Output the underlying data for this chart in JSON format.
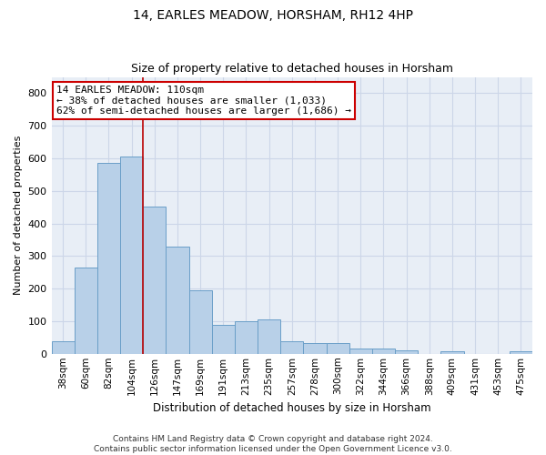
{
  "title": "14, EARLES MEADOW, HORSHAM, RH12 4HP",
  "subtitle": "Size of property relative to detached houses in Horsham",
  "xlabel": "Distribution of detached houses by size in Horsham",
  "ylabel": "Number of detached properties",
  "categories": [
    "38sqm",
    "60sqm",
    "82sqm",
    "104sqm",
    "126sqm",
    "147sqm",
    "169sqm",
    "191sqm",
    "213sqm",
    "235sqm",
    "257sqm",
    "278sqm",
    "300sqm",
    "322sqm",
    "344sqm",
    "366sqm",
    "388sqm",
    "409sqm",
    "431sqm",
    "453sqm",
    "475sqm"
  ],
  "values": [
    38,
    265,
    585,
    605,
    452,
    330,
    195,
    90,
    100,
    105,
    38,
    33,
    33,
    15,
    15,
    10,
    0,
    7,
    0,
    0,
    7
  ],
  "bar_color": "#b8d0e8",
  "bar_edge_color": "#6a9fc8",
  "vline_x": 3.5,
  "vline_color": "#bb0000",
  "annotation_text": "14 EARLES MEADOW: 110sqm\n← 38% of detached houses are smaller (1,033)\n62% of semi-detached houses are larger (1,686) →",
  "annotation_box_color": "#cc0000",
  "ylim": [
    0,
    850
  ],
  "yticks": [
    0,
    100,
    200,
    300,
    400,
    500,
    600,
    700,
    800
  ],
  "grid_color": "#ccd6e8",
  "bg_color": "#e8eef6",
  "footer": "Contains HM Land Registry data © Crown copyright and database right 2024.\nContains public sector information licensed under the Open Government Licence v3.0.",
  "title_fontsize": 10,
  "subtitle_fontsize": 9,
  "xlabel_fontsize": 8.5,
  "ylabel_fontsize": 8,
  "tick_fontsize": 7.5,
  "ytick_fontsize": 8,
  "annotation_fontsize": 8,
  "footer_fontsize": 6.5
}
